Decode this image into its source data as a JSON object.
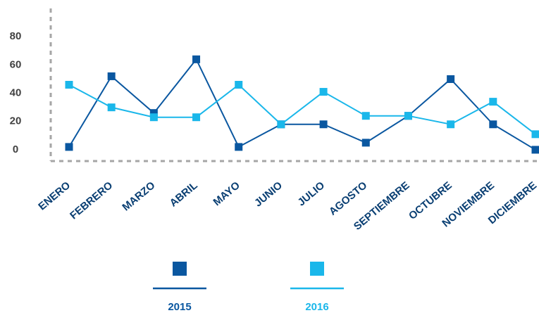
{
  "chart_data": {
    "type": "line",
    "categories": [
      "ENERO",
      "FEBRERO",
      "MARZO",
      "ABRIL",
      "MAYO",
      "JUNIO",
      "JULIO",
      "AGOSTO",
      "SEPTIEMBRE",
      "OCTUBRE",
      "NOVIEMBRE",
      "DICIEMBRE"
    ],
    "series": [
      {
        "name": "2015",
        "color": "#0a57a0",
        "values": [
          2,
          52,
          26,
          64,
          2,
          18,
          18,
          5,
          24,
          50,
          18,
          0
        ]
      },
      {
        "name": "2016",
        "color": "#1ab7ea",
        "values": [
          46,
          30,
          23,
          23,
          46,
          18,
          41,
          24,
          24,
          18,
          34,
          11
        ]
      }
    ],
    "ylim": [
      -8,
      100
    ],
    "yticks": [
      0,
      20,
      40,
      60,
      80
    ],
    "legend": "bottom"
  }
}
